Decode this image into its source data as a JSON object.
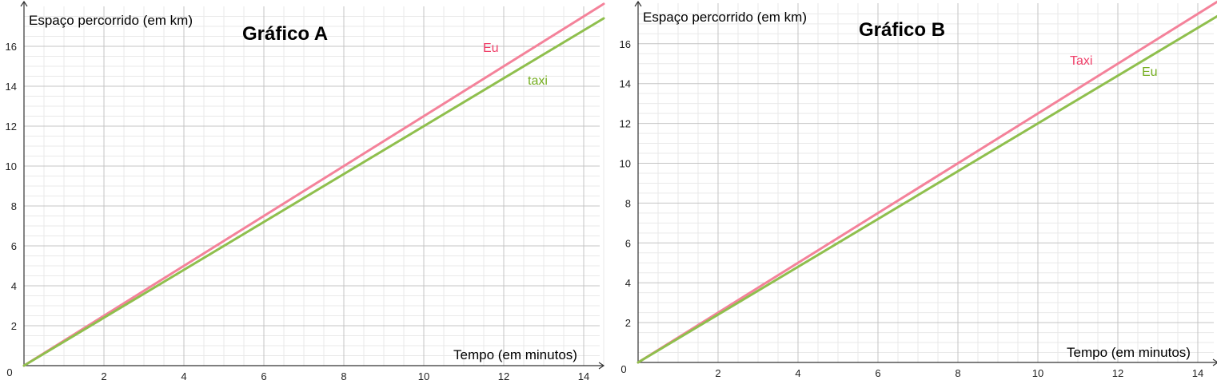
{
  "chart_data": [
    {
      "type": "line",
      "title": "Gráfico A",
      "xlabel": "Tempo (em minutos)",
      "ylabel": "Espaço percorrido (em km)",
      "xlim": [
        0,
        14.5
      ],
      "ylim": [
        0,
        17.9
      ],
      "x_ticks": [
        2,
        4,
        6,
        8,
        10,
        12,
        14
      ],
      "y_ticks": [
        2,
        4,
        6,
        8,
        10,
        12,
        14,
        16
      ],
      "origin_label": "0",
      "grid": true,
      "series": [
        {
          "name": "Eu",
          "color": "#f4829a",
          "label_color": "#f0406a",
          "x": [
            0,
            14.5
          ],
          "y": [
            0,
            18.125
          ]
        },
        {
          "name": "taxi",
          "color": "#8fbf4d",
          "label_color": "#74ad1f",
          "x": [
            0,
            14.5
          ],
          "y": [
            0,
            17.4
          ]
        }
      ]
    },
    {
      "type": "line",
      "title": "Gráfico B",
      "xlabel": "Tempo (em minutos)",
      "ylabel": "Espaço percorrido (em km)",
      "xlim": [
        0,
        14.5
      ],
      "ylim": [
        0,
        18.0
      ],
      "x_ticks": [
        2,
        4,
        6,
        8,
        10,
        12,
        14
      ],
      "y_ticks": [
        2,
        4,
        6,
        8,
        10,
        12,
        14,
        16
      ],
      "origin_label": "0",
      "grid": true,
      "series": [
        {
          "name": "Taxi",
          "color": "#f4829a",
          "label_color": "#f0406a",
          "x": [
            0,
            14.5
          ],
          "y": [
            0,
            18.125
          ]
        },
        {
          "name": "Eu",
          "color": "#8fbf4d",
          "label_color": "#74ad1f",
          "x": [
            0,
            14.5
          ],
          "y": [
            0,
            17.4
          ]
        }
      ]
    }
  ]
}
